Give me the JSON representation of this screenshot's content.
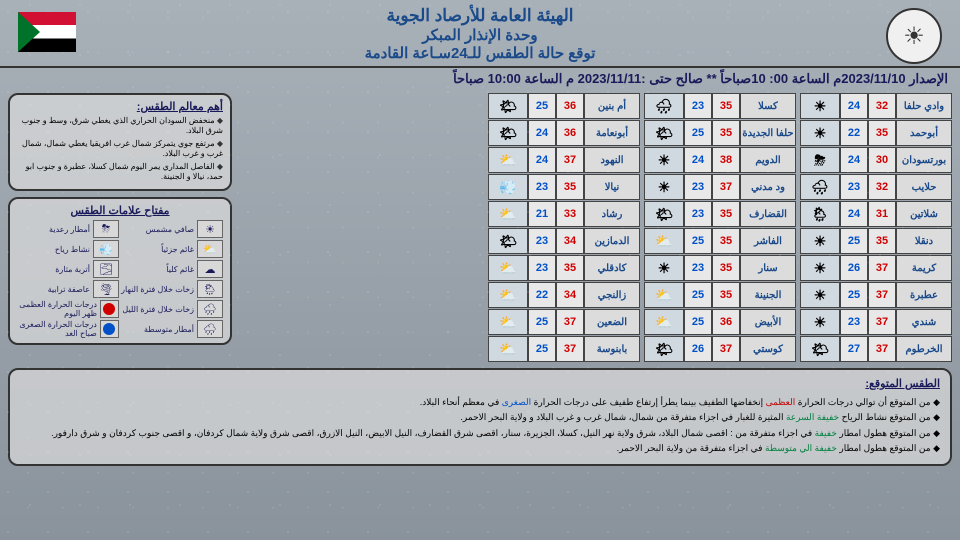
{
  "header": {
    "org": "الهيئة العامة للأرصاد الجوية",
    "unit": "وحدة الإنذار المبكر",
    "title": "توقع حالة الطقس للـ24سـاعة القادمة"
  },
  "issuance": "الإصدار  2023/11/10م الساعة 00: 10صباحاً ** صالح حتى :2023/11/11 م الساعة 10:00 صباحاً",
  "columns": [
    [
      {
        "city": "وادي حلفا",
        "hi": 32,
        "lo": 24,
        "ico": "☀"
      },
      {
        "city": "أبوحمد",
        "hi": 35,
        "lo": 22,
        "ico": "☀"
      },
      {
        "city": "بورتسودان",
        "hi": 30,
        "lo": 24,
        "ico": "⛈"
      },
      {
        "city": "حلايب",
        "hi": 32,
        "lo": 23,
        "ico": "🌧"
      },
      {
        "city": "شلاتين",
        "hi": 31,
        "lo": 24,
        "ico": "🌦"
      },
      {
        "city": "دنقلا",
        "hi": 35,
        "lo": 25,
        "ico": "☀"
      },
      {
        "city": "كريمة",
        "hi": 37,
        "lo": 26,
        "ico": "☀"
      },
      {
        "city": "عطبرة",
        "hi": 37,
        "lo": 25,
        "ico": "☀"
      },
      {
        "city": "شندي",
        "hi": 37,
        "lo": 23,
        "ico": "☀"
      },
      {
        "city": "الخرطوم",
        "hi": 37,
        "lo": 27,
        "ico": "🌤"
      }
    ],
    [
      {
        "city": "كسلا",
        "hi": 35,
        "lo": 23,
        "ico": "🌧"
      },
      {
        "city": "حلفا الجديدة",
        "hi": 35,
        "lo": 25,
        "ico": "🌤"
      },
      {
        "city": "الدويم",
        "hi": 38,
        "lo": 24,
        "ico": "☀"
      },
      {
        "city": "ود مدني",
        "hi": 37,
        "lo": 23,
        "ico": "☀"
      },
      {
        "city": "القضارف",
        "hi": 35,
        "lo": 23,
        "ico": "🌤"
      },
      {
        "city": "الفاشر",
        "hi": 35,
        "lo": 25,
        "ico": "⛅"
      },
      {
        "city": "سنار",
        "hi": 35,
        "lo": 23,
        "ico": "☀"
      },
      {
        "city": "الجنينة",
        "hi": 35,
        "lo": 25,
        "ico": "⛅"
      },
      {
        "city": "الأبيض",
        "hi": 36,
        "lo": 25,
        "ico": "⛅"
      },
      {
        "city": "كوستي",
        "hi": 37,
        "lo": 26,
        "ico": "🌤"
      }
    ],
    [
      {
        "city": "أم بنين",
        "hi": 36,
        "lo": 25,
        "ico": "🌤"
      },
      {
        "city": "أبونعامة",
        "hi": 36,
        "lo": 24,
        "ico": "🌤"
      },
      {
        "city": "النهود",
        "hi": 37,
        "lo": 24,
        "ico": "⛅"
      },
      {
        "city": "نيالا",
        "hi": 35,
        "lo": 23,
        "ico": "💨"
      },
      {
        "city": "رشاد",
        "hi": 33,
        "lo": 21,
        "ico": "⛅"
      },
      {
        "city": "الدمازين",
        "hi": 34,
        "lo": 23,
        "ico": "🌤"
      },
      {
        "city": "كادقلي",
        "hi": 35,
        "lo": 23,
        "ico": "⛅"
      },
      {
        "city": "زالنجي",
        "hi": 34,
        "lo": 22,
        "ico": "⛅"
      },
      {
        "city": "الضعين",
        "hi": 37,
        "lo": 25,
        "ico": "⛅"
      },
      {
        "city": "بابنوسة",
        "hi": 37,
        "lo": 25,
        "ico": "⛅"
      }
    ]
  ],
  "features": {
    "title": "أهم معالم الطقس:",
    "items": [
      "منخفض السودان الحراري الذي يغطي شرق، وسط و جنوب شرق البلاد.",
      "مرتفع جوي يتمركز شمال غرب افريقيا يغطي شمال، شمال غرب و غرب البلاد.",
      "الفاصل المداري يمر اليوم شمال كسلا، عطبرة و جنوب ابو حمد، نيالا و الجنينة."
    ]
  },
  "legend": {
    "title": "مفتاح علامات الطقس",
    "items": [
      {
        "label": "صافي مشمس",
        "ico": "☀"
      },
      {
        "label": "أمطار رعدية",
        "ico": "⛈"
      },
      {
        "label": "غائم جزئياً",
        "ico": "⛅"
      },
      {
        "label": "نشاط رياح",
        "ico": "💨"
      },
      {
        "label": "غائم كلياً",
        "ico": "☁"
      },
      {
        "label": "أتربة مثارة",
        "ico": "🌫"
      },
      {
        "label": "زخات خلال فترة النهار",
        "ico": "🌦"
      },
      {
        "label": "عاصفة ترابية",
        "ico": "🌪"
      },
      {
        "label": "زخات خلال فترة الليل",
        "ico": "🌧"
      },
      {
        "label": "درجات الحرارة العظمى ظهر اليوم",
        "dot": "red"
      },
      {
        "label": "أمطار متوسطة",
        "ico": "🌧"
      },
      {
        "label": "درجات الحرارة الصغرى صباح الغد",
        "dot": "blue"
      }
    ]
  },
  "forecast": {
    "title": "الطقس المتوقع:",
    "lines": [
      "من المتوقع أن توالي درجات الحرارة <span class='red-t'>العظمى</span> إنخفاضها الطفيف بينما يطرأ إرتفاع طفيف على درجات الحرارة <span class='blue-t'>الصغرى</span> في معظم أنحاء البلاد.",
      "من المتوقع نشاط الرياح <span class='green-t'>خفيفة السرعة</span> المثيرة للغبار في اجزاء متفرقة من شمال، شمال غرب و غرب البلاد و ولاية البحر الاحمر.",
      "من المتوقع هطول امطار <span class='green-t'>خفيفة</span> في اجزاء متفرقة من : اقصى شمال البلاد، شرق ولاية نهر النيل، كسلا، الجزيرة، سنار، اقصى شرق القضارف، النيل الابيض، النيل الازرق، اقصى شرق ولاية شمال كردفان، و اقصى جنوب كردفان و شرق دارفور.",
      "من المتوقع هطول امطار <span class='green-t'>خفيفة الي متوسطة</span> في اجزاء متفرقة من ولاية البحر الاحمر."
    ]
  }
}
